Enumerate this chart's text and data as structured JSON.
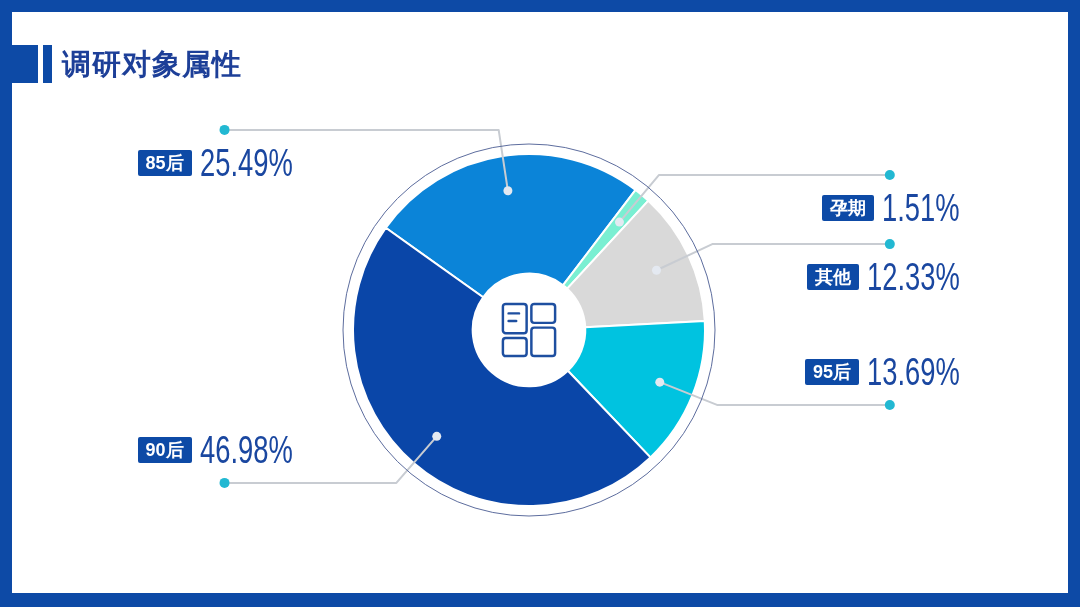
{
  "chart_data": {
    "type": "donut",
    "title": "调研对象属性",
    "categories": [
      "85后",
      "孕期",
      "其他",
      "95后",
      "90后"
    ],
    "values": [
      25.49,
      1.51,
      12.33,
      13.69,
      46.98
    ],
    "colors": [
      "#0b84d8",
      "#7aefd2",
      "#d9d9d9",
      "#00c3e0",
      "#0a46a8"
    ],
    "value_labels": [
      "25.49%",
      "1.51%",
      "12.33%",
      "13.69%",
      "46.98%"
    ]
  }
}
